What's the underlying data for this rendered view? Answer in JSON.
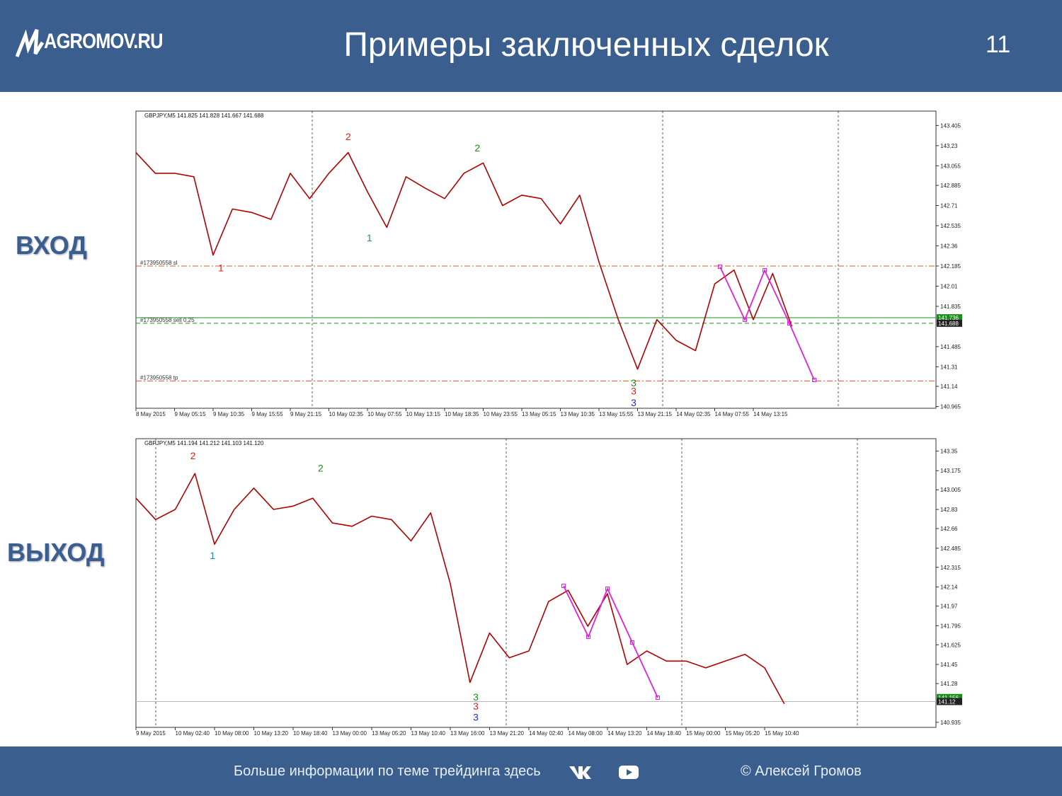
{
  "header": {
    "logo": "AGROMOV.RU",
    "title": "Примеры заключенных сделок",
    "page": "11"
  },
  "labels": {
    "entry": "ВХОД",
    "exit": "ВЫХОД"
  },
  "footer": {
    "info": "Больше информации по теме трейдинга здесь",
    "author": "© Алексей Громов"
  },
  "chart_data": [
    {
      "type": "line",
      "title": "GBPJPY,M5  141.825 141.828 141.667 141.688",
      "categories": [
        "8 May 2015",
        null,
        "9 May 05:15",
        null,
        "9 May 10:35",
        null,
        "9 May 15:55",
        null,
        "9 May 21:15",
        null,
        "10 May 02:35",
        null,
        "10 May 07:55",
        null,
        "10 May 13:15",
        null,
        "10 May 18:35",
        null,
        "10 May 23:55",
        null,
        "13 May 05:15",
        null,
        "13 May 10:35",
        null,
        "13 May 15:55",
        null,
        "13 May 21:15",
        null,
        "14 May 02:35",
        null,
        "14 May 07:55",
        null,
        "14 May 13:15",
        null,
        null
      ],
      "series": [
        {
          "name": "GBPJPY",
          "color": "#b00000",
          "values": [
            143.17,
            142.99,
            142.99,
            142.96,
            142.28,
            142.68,
            142.65,
            142.59,
            142.99,
            142.77,
            142.99,
            143.17,
            142.83,
            142.52,
            142.96,
            142.86,
            142.77,
            142.99,
            143.08,
            142.71,
            142.8,
            142.77,
            142.55,
            142.8,
            142.22,
            141.72,
            141.29,
            141.72,
            141.54,
            141.45,
            142.03,
            142.15,
            141.72,
            142.12,
            141.66
          ]
        }
      ],
      "ylim": [
        140.95,
        143.53
      ],
      "yticks": [
        143.405,
        143.23,
        143.055,
        142.885,
        142.71,
        142.535,
        142.36,
        142.185,
        142.01,
        141.835,
        141.485,
        141.31,
        141.14,
        140.965
      ],
      "levels": [
        {
          "value": 142.185,
          "color": "#e8501e",
          "style": "dashdot",
          "label": "#173950558 sl"
        },
        {
          "value": 141.736,
          "color": "#1a8f1a",
          "style": "solid",
          "price_box": "#1a8f1a"
        },
        {
          "value": 141.688,
          "color": "#1a8f1a",
          "style": "dashed",
          "label": "#173950558 sell 0.25",
          "price_box": "#222222"
        },
        {
          "value": 141.187,
          "color": "#e8501e",
          "style": "dashdot",
          "label": "#173950558 tp"
        }
      ],
      "annotations": [
        {
          "text": "1",
          "color": "#e02020",
          "x": 4.4,
          "y": 142.17
        },
        {
          "text": "2",
          "color": "#e02020",
          "x": 11.0,
          "y": 143.31
        },
        {
          "text": "1",
          "color": "#1a8f8f",
          "x": 12.1,
          "y": 142.43
        },
        {
          "text": "2",
          "color": "#1a8f1a",
          "x": 17.7,
          "y": 143.21
        },
        {
          "text": "3",
          "color": "#1a8f1a",
          "x": 25.8,
          "y": 141.17
        },
        {
          "text": "3",
          "color": "#e02020",
          "x": 25.8,
          "y": 141.1
        },
        {
          "text": "3",
          "color": "#2030c0",
          "x": 25.8,
          "y": 141.0
        }
      ]
    },
    {
      "type": "line",
      "title": "GBPJPY,M5  141.194 141.212 141.103 141.120",
      "categories": [
        "9 May 2015",
        null,
        "10 May 02:40",
        null,
        "10 May 08:00",
        null,
        "10 May 13:20",
        null,
        "10 May 18:40",
        null,
        "13 May 00:00",
        null,
        "13 May 05:20",
        null,
        "13 May 10:40",
        null,
        "13 May 16:00",
        null,
        "13 May 21:20",
        null,
        "14 May 02:40",
        null,
        "14 May 08:00",
        null,
        "14 May 13:20",
        null,
        "14 May 18:40",
        null,
        "15 May 00:00",
        null,
        "15 May 05:20",
        null,
        "15 May 10:40",
        null
      ],
      "series": [
        {
          "name": "GBPJPY",
          "color": "#b00000",
          "values": [
            142.93,
            142.74,
            142.83,
            143.15,
            142.52,
            142.83,
            143.02,
            142.83,
            142.86,
            142.93,
            142.71,
            142.68,
            142.77,
            142.74,
            142.55,
            142.8,
            142.17,
            141.29,
            141.73,
            141.51,
            141.57,
            142.01,
            142.11,
            141.79,
            142.08,
            141.45,
            141.57,
            141.48,
            141.48,
            141.42,
            141.48,
            141.54,
            141.42,
            141.1
          ]
        }
      ],
      "ylim": [
        140.89,
        143.46
      ],
      "yticks": [
        143.35,
        143.175,
        143.005,
        142.83,
        142.66,
        142.485,
        142.315,
        142.14,
        141.97,
        141.795,
        141.625,
        141.45,
        141.28,
        140.935
      ],
      "levels": [
        {
          "value": 141.156,
          "color": "#1a8f1a",
          "style": "none",
          "price_box": "#1a8f1a"
        },
        {
          "value": 141.12,
          "color": "#b8b8b8",
          "style": "solid",
          "price_box": "#222222"
        }
      ],
      "annotations": [
        {
          "text": "2",
          "color": "#e02020",
          "x": 2.9,
          "y": 143.31
        },
        {
          "text": "1",
          "color": "#1a8f8f",
          "x": 3.9,
          "y": 142.42
        },
        {
          "text": "2",
          "color": "#1a8f1a",
          "x": 9.4,
          "y": 143.2
        },
        {
          "text": "3",
          "color": "#1a8f1a",
          "x": 17.3,
          "y": 141.16
        },
        {
          "text": "3",
          "color": "#e02020",
          "x": 17.3,
          "y": 141.08
        },
        {
          "text": "3",
          "color": "#2030c0",
          "x": 17.3,
          "y": 140.98
        }
      ]
    }
  ]
}
